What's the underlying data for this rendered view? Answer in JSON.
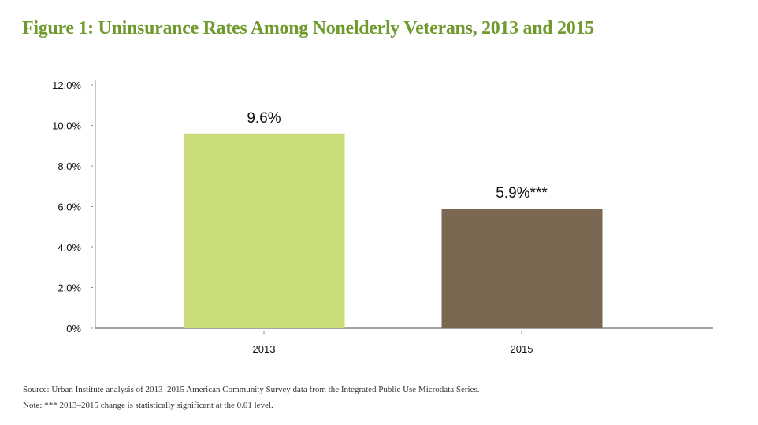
{
  "title": "Figure 1: Uninsurance Rates Among Nonelderly Veterans, 2013 and 2015",
  "chart_data": {
    "type": "bar",
    "title": "Figure 1: Uninsurance Rates Among Nonelderly Veterans, 2013 and 2015",
    "categories": [
      "2013",
      "2015"
    ],
    "values": [
      9.6,
      5.9
    ],
    "data_labels": [
      "9.6%",
      "5.9%***"
    ],
    "colors": [
      "#c9dc7a",
      "#7a6853"
    ],
    "xlabel": "",
    "ylabel": "",
    "ylim": [
      0,
      12
    ],
    "yticks": [
      0,
      2,
      4,
      6,
      8,
      10,
      12
    ],
    "ytick_labels": [
      "0%",
      "2.0%",
      "4.0%",
      "6.0%",
      "8.0%",
      "10.0%",
      "12.0%"
    ],
    "grid": false,
    "legend": "none"
  },
  "notes": {
    "source": "Source: Urban Institute analysis of 2013–2015 American Community Survey data from the Integrated Public Use Microdata Series.",
    "note": "Note: *** 2013–2015 change is statistically significant at the 0.01 level."
  }
}
